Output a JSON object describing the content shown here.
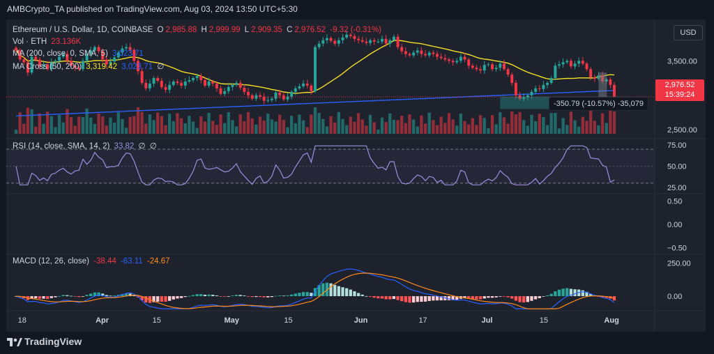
{
  "header": {
    "text": "AMBCrypto_TA published on TradingView.com, Aug 03, 2024 13:50 UTC+5:30"
  },
  "legend": {
    "symbol": "Ethereum / U.S. Dollar, 1D, COINBASE",
    "o_label": "O",
    "o_value": "2,985.88",
    "h_label": "H",
    "h_value": "2,999.99",
    "l_label": "L",
    "l_value": "2,909.35",
    "c_label": "C",
    "c_value": "2,976.52",
    "change": "-9.32 (-0.31%)",
    "vol_label": "Vol · ETH",
    "vol_value": "23.136K",
    "ma_label": "MA (200, close, 0, SMA, 5)",
    "ma_value": "3,023.71",
    "macross_label": "MA Cross (50, 200)",
    "macross_v1": "3,319.42",
    "macross_v2": "3,023.71",
    "macross_v3": "∅",
    "rsi_label": "RSI (14, close, SMA, 14, 2)",
    "rsi_value": "33.82",
    "rsi_v2": "∅",
    "rsi_v3": "∅",
    "macd_label": "MACD (12, 26, close)",
    "macd_hist": "-38.44",
    "macd_line": "-63.11",
    "macd_signal": "-24.67"
  },
  "currency_button": "USD",
  "price_badge": {
    "price": "2,976.52",
    "countdown": "15:39:24"
  },
  "measure_label": "-350.79 (-10.57%) -35,079",
  "footer": {
    "brand": "TradingView"
  },
  "colors": {
    "up": "#26a69a",
    "down": "#f23645",
    "ma_yellow": "#f5e125",
    "ma_blue": "#2962ff",
    "rsi": "#9c8fe0",
    "macd": "#2962ff",
    "signal": "#ff8a1c"
  },
  "chart_data": [
    {
      "type": "candlestick",
      "title": "Ethereum / U.S. Dollar, 1D, COINBASE",
      "y_axis": {
        "ticks": [
          "3,500.00",
          "3,000.00",
          "2,500.00"
        ],
        "ylim": [
          2400,
          4050
        ]
      },
      "x_axis": {
        "ticks": [
          "18",
          "Apr",
          "15",
          "May",
          "15",
          "Jun",
          "17",
          "Jul",
          "15",
          "Aug"
        ]
      },
      "last_close": 2976.52,
      "close_series": [
        3650,
        3520,
        3480,
        3330,
        3560,
        3520,
        3420,
        3450,
        3380,
        3480,
        3500,
        3560,
        3600,
        3500,
        3430,
        3400,
        3380,
        3500,
        3600,
        3650,
        3700,
        3640,
        3520,
        3450,
        3490,
        3550,
        3620,
        3680,
        3700,
        3660,
        3500,
        3350,
        3180,
        3100,
        3170,
        3250,
        3210,
        3120,
        3080,
        3150,
        3200,
        3180,
        3140,
        3200,
        3220,
        3250,
        3280,
        3220,
        3140,
        3200,
        3170,
        3100,
        3020,
        3060,
        3120,
        3150,
        3180,
        3110,
        3050,
        3000,
        2950,
        3000,
        2980,
        2920,
        2930,
        2950,
        3040,
        3000,
        2940,
        2980,
        3050,
        3100,
        3130,
        3170,
        3140,
        3060,
        3700,
        3750,
        3800,
        3830,
        3790,
        3750,
        3800,
        3840,
        3880,
        3860,
        3820,
        3800,
        3780,
        3760,
        3800,
        3780,
        3780,
        3820,
        3750,
        3800,
        3850,
        3700,
        3640,
        3600,
        3580,
        3620,
        3650,
        3600,
        3580,
        3620,
        3600,
        3560,
        3540,
        3520,
        3500,
        3480,
        3500,
        3560,
        3520,
        3430,
        3400,
        3380,
        3360,
        3440,
        3450,
        3380,
        3400,
        3460,
        3380,
        3300,
        3180,
        3000,
        2950,
        2970,
        3000,
        3050,
        3100,
        3090,
        3150,
        3180,
        3250,
        3430,
        3450,
        3480,
        3500,
        3420,
        3460,
        3500,
        3460,
        3380,
        3260,
        3240,
        3290,
        3200,
        3230,
        3150,
        2980
      ]
    },
    {
      "type": "line",
      "title": "RSI (14, close, SMA, 14, 2)",
      "y_axis": {
        "ticks": [
          "75.00",
          "50.00",
          "25.00"
        ],
        "ylim": [
          20,
          80
        ]
      },
      "last_value": 33.82
    },
    {
      "type": "line",
      "title": "",
      "y_axis": {
        "ticks": [
          "0.50",
          "0.00",
          "−0.50"
        ],
        "ylim": [
          -0.6,
          0.6
        ]
      }
    },
    {
      "type": "bar",
      "title": "MACD (12, 26, close)",
      "y_axis": {
        "ticks": [
          "250.00",
          "0.00"
        ],
        "ylim": [
          -100,
          300
        ]
      },
      "series": [
        {
          "name": "Histogram",
          "last": -38.44
        },
        {
          "name": "MACD",
          "last": -63.11
        },
        {
          "name": "Signal",
          "last": -24.67
        }
      ]
    }
  ]
}
